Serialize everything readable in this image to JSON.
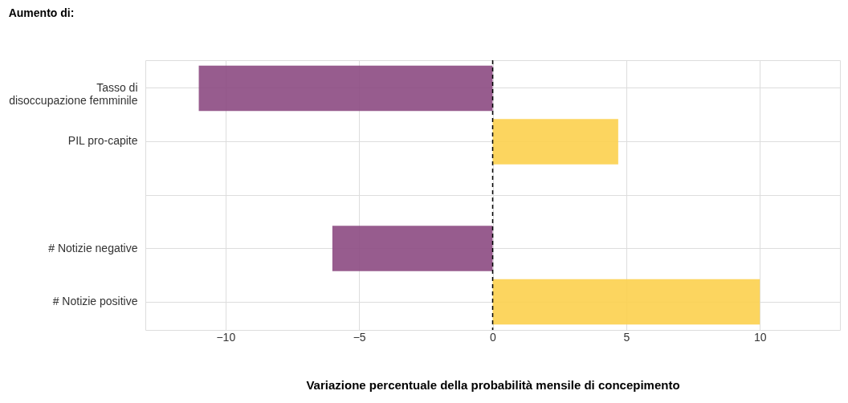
{
  "chart_data": {
    "type": "bar",
    "orientation": "horizontal",
    "title": "Aumento di:",
    "xlabel": "Variazione percentuale della probabilità mensile di concepimento",
    "categories": [
      "Tasso di\ndisoccupazione femminile",
      "PIL pro-capite",
      null,
      "# Notizie negative",
      "# Notizie positive"
    ],
    "values": [
      -11.0,
      4.7,
      null,
      -6.0,
      10.0
    ],
    "colors": [
      "#8c4a82",
      "#fcd04e",
      null,
      "#8c4a82",
      "#fcd04e"
    ],
    "xlim": [
      -13,
      13
    ],
    "xticks": [
      -10,
      -5,
      0,
      5,
      10
    ],
    "ref_lines": [
      {
        "axis": "x",
        "value": 0,
        "line_style": "dashed",
        "color": "#000000"
      }
    ],
    "grid": true
  }
}
